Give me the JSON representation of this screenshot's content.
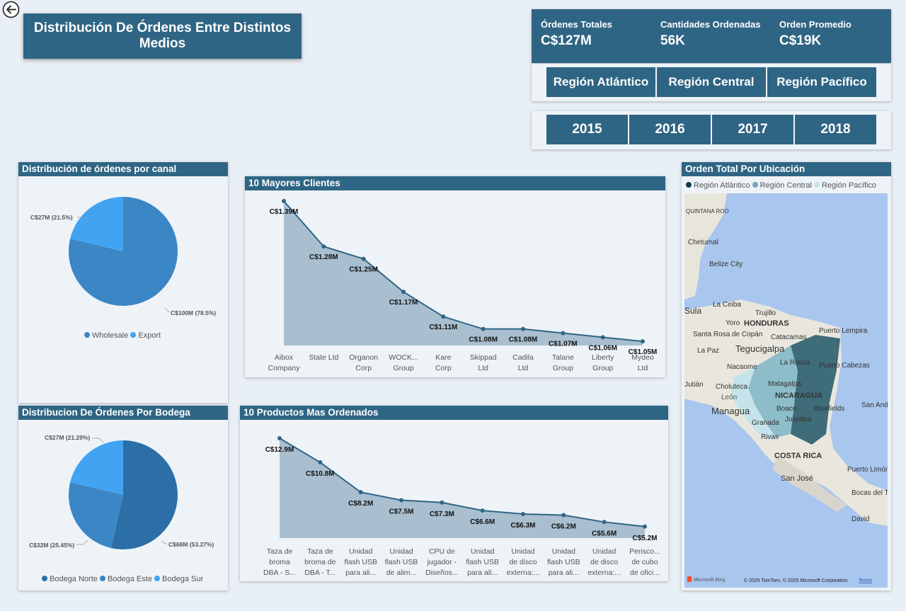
{
  "title": "Distribución De Órdenes Entre Distintos Medios",
  "kpis": [
    {
      "label": "Órdenes Totales",
      "value": "C$127M"
    },
    {
      "label": "Cantidades Ordenadas",
      "value": "56K"
    },
    {
      "label": "Orden Promedio",
      "value": "C$19K"
    }
  ],
  "region_slicer": [
    "Región Atlántico",
    "Región Central",
    "Región Pacífico"
  ],
  "year_slicer": [
    "2015",
    "2016",
    "2017",
    "2018"
  ],
  "icons": {
    "back": "back-arrow-icon"
  },
  "colors": {
    "header": "#2f6584",
    "pie_dark": "#2b6fa6",
    "pie_mid": "#3b86c4",
    "pie_light": "#43a3f3",
    "area_fill": "#a4bccc",
    "line": "#2f6584"
  },
  "map": {
    "title": "Orden Total Por Ubicación",
    "legend": [
      {
        "label": "Región Atlántico",
        "color": "#123a4a"
      },
      {
        "label": "Región Central",
        "color": "#6fa7b8"
      },
      {
        "label": "Región Pacífico",
        "color": "#c4e3ea"
      }
    ],
    "places": [
      "QUINTANA ROO",
      "Chetumal",
      "Belize City",
      "La Ceiba",
      "Trujillo",
      "Yoro",
      "HONDURAS",
      "Santa Rosa de Copán",
      "La Paz",
      "Tegucigalpa",
      "Catacamas",
      "Puerto Lempira",
      "Nacaome",
      "La Rosita",
      "Puerto Cabezas",
      "Choluteca",
      "León",
      "Matagalpa",
      "NICARAGUA",
      "Managua",
      "Boaco",
      "Juigalpa",
      "Bluefields",
      "Granada",
      "Rivas",
      "COSTA RICA",
      "San José",
      "Puerto Limón",
      "Bocas del Toro",
      "David",
      "San Andrés",
      "Sula",
      "Jutián"
    ],
    "attribution": "© 2025 TomTom, © 2025 Microsoft Corporation",
    "terms": "Terms",
    "brand": "Microsoft Bing"
  },
  "chart_data": [
    {
      "type": "pie",
      "title": "Distribución de órdenes por canal",
      "series": [
        {
          "name": "Wholesale",
          "value": 100,
          "label": "C$100M (78.5%)",
          "color": "#3b86c4"
        },
        {
          "name": "Export",
          "value": 27,
          "label": "C$27M (21.5%)",
          "color": "#43a3f3"
        }
      ],
      "legend": [
        "Wholesale",
        "Export"
      ],
      "legend_position": "bottom"
    },
    {
      "type": "pie",
      "title": "Distribucion De Órdenes Por Bodega",
      "series": [
        {
          "name": "Bodega Norte",
          "value": 68,
          "label": "C$68M (53.27%)",
          "color": "#2b6fa6"
        },
        {
          "name": "Bodega Este",
          "value": 32,
          "label": "C$32M (25.45%)",
          "color": "#3b86c4"
        },
        {
          "name": "Bodega Sur",
          "value": 27,
          "label": "C$27M (21.29%)",
          "color": "#43a3f3"
        }
      ],
      "legend": [
        "Bodega Norte",
        "Bodega Este",
        "Bodega Sur"
      ],
      "legend_position": "bottom"
    },
    {
      "type": "area",
      "title": "10 Mayores Clientes",
      "categories": [
        [
          "Aibox",
          "Company"
        ],
        [
          "State Ltd"
        ],
        [
          "Organon",
          "Corp"
        ],
        [
          "WOCK...",
          "Group"
        ],
        [
          "Kare",
          "Corp"
        ],
        [
          "Skippad",
          "Ltd"
        ],
        [
          "Cadila",
          "Ltd"
        ],
        [
          "Talane",
          "Group"
        ],
        [
          "Liberty",
          "Group"
        ],
        [
          "Mydeo",
          "Ltd"
        ]
      ],
      "values": [
        1.39,
        1.28,
        1.25,
        1.17,
        1.11,
        1.08,
        1.08,
        1.07,
        1.06,
        1.05
      ],
      "labels": [
        "C$1.39M",
        "C$1.28M",
        "C$1.25M",
        "C$1.17M",
        "C$1.11M",
        "C$1.08M",
        "C$1.08M",
        "C$1.07M",
        "C$1.06M",
        "C$1.05M"
      ],
      "ylim": [
        1.04,
        1.39
      ]
    },
    {
      "type": "area",
      "title": "10 Productos Mas Ordenados",
      "categories": [
        [
          "Taza de",
          "broma",
          "DBA - S..."
        ],
        [
          "Taza de",
          "broma de",
          "DBA - T..."
        ],
        [
          "Unidad",
          "flash USB",
          "para ali..."
        ],
        [
          "Unidad",
          "flash USB",
          "de alim..."
        ],
        [
          "CPU de",
          "jugador -",
          "Diseños..."
        ],
        [
          "Unidad",
          "flash USB",
          "para ali..."
        ],
        [
          "Unidad",
          "de disco",
          "externa:..."
        ],
        [
          "Unidad",
          "flash USB",
          "para ali..."
        ],
        [
          "Unidad",
          "de disco",
          "externa:..."
        ],
        [
          "Perisco...",
          "de cubo",
          "de ofici..."
        ]
      ],
      "values": [
        12.9,
        10.8,
        8.2,
        7.5,
        7.3,
        6.6,
        6.3,
        6.2,
        5.6,
        5.2
      ],
      "labels": [
        "C$12.9M",
        "C$10.8M",
        "C$8.2M",
        "C$7.5M",
        "C$7.3M",
        "C$6.6M",
        "C$6.3M",
        "C$6.2M",
        "C$5.6M",
        "C$5.2M"
      ],
      "ylim": [
        4.2,
        12.9
      ]
    }
  ]
}
